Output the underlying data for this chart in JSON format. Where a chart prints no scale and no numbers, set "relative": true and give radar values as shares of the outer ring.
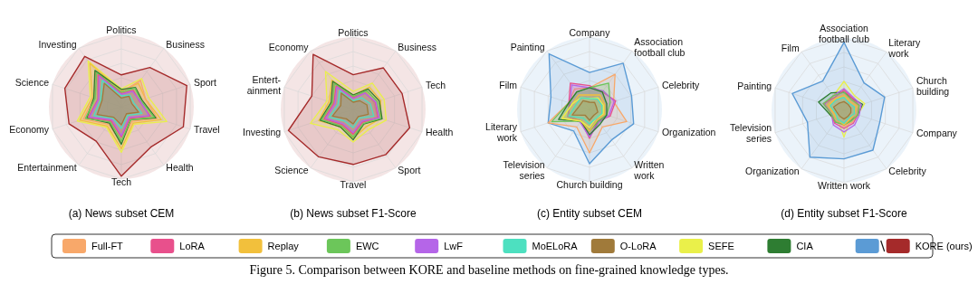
{
  "chart_data": [
    {
      "type": "radar",
      "title": "(a) News subset CEM",
      "relative": true,
      "grid": true,
      "legend": "bottom",
      "annotations": [
        "Figure 5. Comparison between KORE and baseline methods on fine-grained knowledge types."
      ],
      "categories": [
        "Politics",
        "Business",
        "Sport",
        "Travel",
        "Health",
        "Tech",
        "Entertainment",
        "Economy",
        "Science",
        "Investing"
      ],
      "series": [
        {
          "name": "KORE (ours)",
          "color": "#a52a2a",
          "values": [
            0.44,
            0.67,
            0.95,
            0.9,
            0.69,
            0.96,
            0.59,
            0.76,
            0.82,
            0.86
          ]
        },
        {
          "name": "SEFE",
          "color": "#eaf04a",
          "values": [
            0.25,
            0.48,
            0.4,
            0.66,
            0.3,
            0.63,
            0.35,
            0.64,
            0.45,
            0.78
          ]
        },
        {
          "name": "Replay",
          "color": "#f2c03c",
          "values": [
            0.22,
            0.4,
            0.35,
            0.58,
            0.28,
            0.58,
            0.33,
            0.6,
            0.42,
            0.74
          ]
        },
        {
          "name": "Full-FT",
          "color": "#f8a86a",
          "values": [
            0.2,
            0.45,
            0.35,
            0.52,
            0.25,
            0.5,
            0.3,
            0.55,
            0.4,
            0.6
          ]
        },
        {
          "name": "CIA",
          "color": "#2e7d32",
          "values": [
            0.24,
            0.33,
            0.3,
            0.5,
            0.22,
            0.52,
            0.28,
            0.5,
            0.4,
            0.62
          ]
        },
        {
          "name": "EWC",
          "color": "#6cc65a",
          "values": [
            0.2,
            0.32,
            0.28,
            0.48,
            0.22,
            0.48,
            0.26,
            0.52,
            0.38,
            0.58
          ]
        },
        {
          "name": "LoRA",
          "color": "#e8508c",
          "values": [
            0.18,
            0.28,
            0.26,
            0.42,
            0.2,
            0.42,
            0.24,
            0.48,
            0.34,
            0.55
          ]
        },
        {
          "name": "LwF",
          "color": "#b565e8",
          "values": [
            0.17,
            0.26,
            0.27,
            0.4,
            0.18,
            0.4,
            0.22,
            0.46,
            0.33,
            0.52
          ]
        },
        {
          "name": "MoELoRA",
          "color": "#4de0c0",
          "values": [
            0.15,
            0.2,
            0.18,
            0.3,
            0.15,
            0.3,
            0.2,
            0.4,
            0.3,
            0.45
          ]
        },
        {
          "name": "O-LoRA",
          "color": "#a07a3a",
          "values": [
            0.12,
            0.18,
            0.15,
            0.25,
            0.12,
            0.25,
            0.18,
            0.35,
            0.28,
            0.4
          ]
        }
      ]
    },
    {
      "type": "radar",
      "title": "(b) News subset F1-Score",
      "relative": true,
      "grid": true,
      "categories": [
        "Politics",
        "Business",
        "Tech",
        "Health",
        "Sport",
        "Travel",
        "Science",
        "Investing",
        "Entert-\nainment",
        "Economy"
      ],
      "series": [
        {
          "color": "#a52a2a",
          "values": [
            0.48,
            0.71,
            0.71,
            0.82,
            0.77,
            0.76,
            0.81,
            0.94,
            0.6,
            0.94
          ]
        },
        {
          "color": "#eaf04a",
          "values": [
            0.25,
            0.45,
            0.45,
            0.48,
            0.35,
            0.45,
            0.35,
            0.62,
            0.38,
            0.65
          ]
        },
        {
          "color": "#f2c03c",
          "values": [
            0.2,
            0.38,
            0.4,
            0.4,
            0.3,
            0.4,
            0.3,
            0.5,
            0.35,
            0.5
          ]
        },
        {
          "color": "#f8a86a",
          "values": [
            0.18,
            0.3,
            0.3,
            0.35,
            0.25,
            0.35,
            0.28,
            0.45,
            0.3,
            0.45
          ]
        },
        {
          "color": "#2e7d32",
          "values": [
            0.2,
            0.35,
            0.38,
            0.42,
            0.25,
            0.42,
            0.3,
            0.48,
            0.32,
            0.48
          ]
        },
        {
          "color": "#6cc65a",
          "values": [
            0.18,
            0.32,
            0.35,
            0.4,
            0.24,
            0.38,
            0.28,
            0.46,
            0.3,
            0.44
          ]
        },
        {
          "color": "#e8508c",
          "values": [
            0.16,
            0.28,
            0.32,
            0.36,
            0.22,
            0.34,
            0.26,
            0.42,
            0.28,
            0.4
          ]
        },
        {
          "color": "#b565e8",
          "values": [
            0.15,
            0.28,
            0.33,
            0.38,
            0.2,
            0.32,
            0.24,
            0.4,
            0.26,
            0.38
          ]
        },
        {
          "color": "#4de0c0",
          "values": [
            0.12,
            0.2,
            0.25,
            0.3,
            0.15,
            0.25,
            0.2,
            0.35,
            0.22,
            0.32
          ]
        },
        {
          "color": "#a07a3a",
          "values": [
            0.1,
            0.15,
            0.2,
            0.22,
            0.12,
            0.2,
            0.16,
            0.3,
            0.18,
            0.28
          ]
        }
      ]
    },
    {
      "type": "radar",
      "title": "(c) Entity subset CEM",
      "relative": true,
      "grid": true,
      "categories": [
        "Company",
        "Association\nfootball club",
        "Celebrity",
        "Organization",
        "Written\nwork",
        "Church building",
        "Television\nseries",
        "Literary\nwork",
        "Film",
        "Painting"
      ],
      "series": [
        {
          "color": "#5b9bd5",
          "values": [
            0.51,
            0.79,
            0.61,
            0.64,
            0.52,
            0.75,
            0.37,
            0.6,
            0.56,
            0.95
          ]
        },
        {
          "color": "#f8a86a",
          "values": [
            0.3,
            0.6,
            0.35,
            0.54,
            0.3,
            0.6,
            0.3,
            0.6,
            0.3,
            0.35
          ]
        },
        {
          "color": "#e8508c",
          "values": [
            0.33,
            0.3,
            0.38,
            0.3,
            0.2,
            0.4,
            0.2,
            0.3,
            0.3,
            0.45
          ]
        },
        {
          "color": "#b565e8",
          "values": [
            0.3,
            0.32,
            0.36,
            0.28,
            0.22,
            0.38,
            0.22,
            0.32,
            0.28,
            0.42
          ]
        },
        {
          "color": "#6cc65a",
          "values": [
            0.3,
            0.45,
            0.3,
            0.25,
            0.2,
            0.3,
            0.2,
            0.55,
            0.3,
            0.3
          ]
        },
        {
          "color": "#2e7d32",
          "values": [
            0.3,
            0.3,
            0.25,
            0.25,
            0.25,
            0.35,
            0.2,
            0.45,
            0.3,
            0.3
          ]
        },
        {
          "color": "#f2c03c",
          "values": [
            0.2,
            0.25,
            0.22,
            0.22,
            0.18,
            0.3,
            0.2,
            0.4,
            0.25,
            0.25
          ]
        },
        {
          "color": "#eaf04a",
          "values": [
            0.15,
            0.2,
            0.2,
            0.2,
            0.15,
            0.25,
            0.2,
            0.4,
            0.25,
            0.2
          ]
        },
        {
          "color": "#4de0c0",
          "values": [
            0.15,
            0.18,
            0.18,
            0.18,
            0.15,
            0.2,
            0.15,
            0.3,
            0.2,
            0.2
          ]
        },
        {
          "color": "#a07a3a",
          "values": [
            0.1,
            0.12,
            0.1,
            0.12,
            0.1,
            0.15,
            0.1,
            0.25,
            0.15,
            0.15
          ]
        }
      ]
    },
    {
      "type": "radar",
      "title": "(d) Entity subset F1-Score",
      "relative": true,
      "grid": true,
      "categories": [
        "Association\nfootball club",
        "Literary\nwork",
        "Church\nbuilding",
        "Company",
        "Celebrity",
        "Written work",
        "Organization",
        "Television\nseries",
        "Painting",
        "Film"
      ],
      "series": [
        {
          "color": "#5b9bd5",
          "values": [
            0.94,
            0.47,
            0.59,
            0.52,
            0.68,
            0.67,
            0.8,
            0.53,
            0.75,
            0.5
          ]
        },
        {
          "color": "#eaf04a",
          "values": [
            0.4,
            0.25,
            0.3,
            0.2,
            0.15,
            0.37,
            0.15,
            0.2,
            0.25,
            0.25
          ]
        },
        {
          "color": "#2e7d32",
          "values": [
            0.25,
            0.2,
            0.27,
            0.2,
            0.17,
            0.2,
            0.2,
            0.2,
            0.37,
            0.3
          ]
        },
        {
          "color": "#b565e8",
          "values": [
            0.3,
            0.22,
            0.25,
            0.22,
            0.25,
            0.3,
            0.25,
            0.18,
            0.28,
            0.25
          ]
        },
        {
          "color": "#e8508c",
          "values": [
            0.28,
            0.2,
            0.22,
            0.2,
            0.22,
            0.25,
            0.22,
            0.18,
            0.3,
            0.22
          ]
        },
        {
          "color": "#f8a86a",
          "values": [
            0.22,
            0.18,
            0.2,
            0.18,
            0.2,
            0.22,
            0.18,
            0.15,
            0.25,
            0.2
          ]
        },
        {
          "color": "#6cc65a",
          "values": [
            0.25,
            0.18,
            0.22,
            0.2,
            0.18,
            0.2,
            0.2,
            0.18,
            0.3,
            0.25
          ]
        },
        {
          "color": "#f2c03c",
          "values": [
            0.2,
            0.15,
            0.18,
            0.15,
            0.15,
            0.2,
            0.15,
            0.15,
            0.22,
            0.2
          ]
        },
        {
          "color": "#4de0c0",
          "values": [
            0.18,
            0.12,
            0.15,
            0.15,
            0.12,
            0.18,
            0.15,
            0.12,
            0.2,
            0.18
          ]
        },
        {
          "color": "#a07a3a",
          "values": [
            0.12,
            0.1,
            0.1,
            0.1,
            0.1,
            0.12,
            0.1,
            0.1,
            0.15,
            0.12
          ]
        }
      ]
    }
  ]
}
